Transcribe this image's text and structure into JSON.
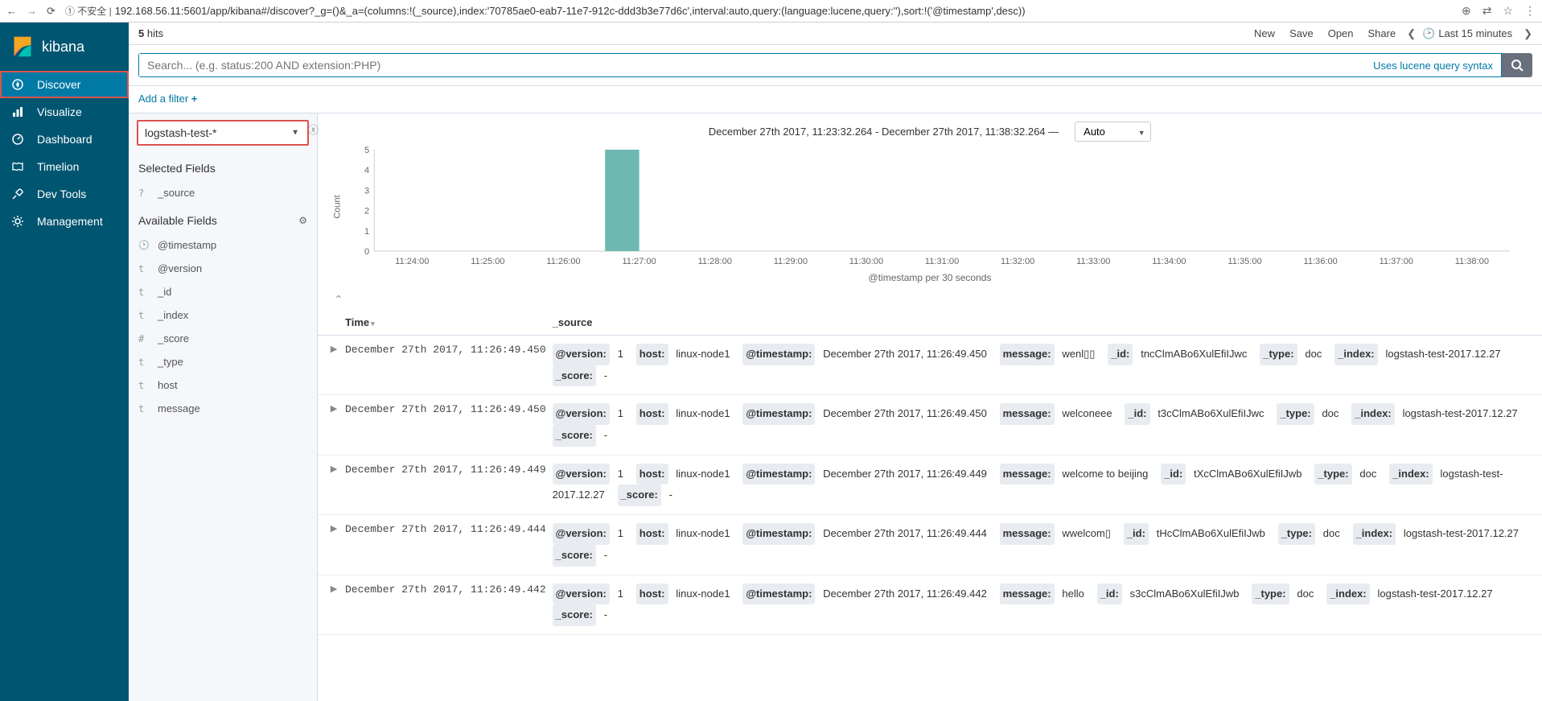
{
  "browser": {
    "url_prefix": "① 不安全 |",
    "url": "192.168.56.11:5601/app/kibana#/discover?_g=()&_a=(columns:!(_source),index:'70785ae0-eab7-11e7-912c-ddd3b3e77d6c',interval:auto,query:(language:lucene,query:''),sort:!('@timestamp',desc))"
  },
  "brand": "kibana",
  "nav": {
    "items": [
      {
        "key": "discover",
        "label": "Discover",
        "active": true,
        "highlighted": true
      },
      {
        "key": "visualize",
        "label": "Visualize"
      },
      {
        "key": "dashboard",
        "label": "Dashboard"
      },
      {
        "key": "timelion",
        "label": "Timelion"
      },
      {
        "key": "devtools",
        "label": "Dev Tools"
      },
      {
        "key": "management",
        "label": "Management"
      }
    ]
  },
  "topbar": {
    "hits_count": "5",
    "hits_label": "hits",
    "links": {
      "new": "New",
      "save": "Save",
      "open": "Open",
      "share": "Share"
    },
    "time_label": "Last 15 minutes"
  },
  "search": {
    "placeholder": "Search... (e.g. status:200 AND extension:PHP)",
    "lucene_hint": "Uses lucene query syntax"
  },
  "filter": {
    "add_label": "Add a filter"
  },
  "index_pattern": "logstash-test-*",
  "fields": {
    "selected_heading": "Selected Fields",
    "available_heading": "Available Fields",
    "selected": [
      {
        "type": "?",
        "name": "_source"
      }
    ],
    "available": [
      {
        "type": "clock",
        "name": "@timestamp"
      },
      {
        "type": "t",
        "name": "@version"
      },
      {
        "type": "t",
        "name": "_id"
      },
      {
        "type": "t",
        "name": "_index"
      },
      {
        "type": "#",
        "name": "_score"
      },
      {
        "type": "t",
        "name": "_type"
      },
      {
        "type": "t",
        "name": "host"
      },
      {
        "type": "t",
        "name": "message"
      }
    ]
  },
  "daterange": {
    "text": "December 27th 2017, 11:23:32.264 - December 27th 2017, 11:38:32.264 —",
    "interval": "Auto"
  },
  "chart": {
    "type": "bar",
    "ylabel": "Count",
    "xlabel": "@timestamp per 30 seconds",
    "ylim": [
      0,
      5
    ],
    "yticks": [
      0,
      1,
      2,
      3,
      4,
      5
    ],
    "xticks": [
      "11:24:00",
      "11:25:00",
      "11:26:00",
      "11:27:00",
      "11:28:00",
      "11:29:00",
      "11:30:00",
      "11:31:00",
      "11:32:00",
      "11:33:00",
      "11:34:00",
      "11:35:00",
      "11:36:00",
      "11:37:00",
      "11:38:00"
    ],
    "bar": {
      "x_index": 3,
      "value": 5
    },
    "bar_color": "#6db9b2",
    "axis_color": "#cccccc",
    "tick_font_size": 11,
    "bg_color": "#ffffff"
  },
  "table": {
    "columns": {
      "time": "Time",
      "source": "_source"
    },
    "rows": [
      {
        "time": "December 27th 2017, 11:26:49.450",
        "fields": [
          [
            "@version:",
            "1"
          ],
          [
            "host:",
            "linux-node1"
          ],
          [
            "@timestamp:",
            "December 27th 2017, 11:26:49.450"
          ],
          [
            "message:",
            "wenl▯▯"
          ],
          [
            "_id:",
            "tncClmABo6XulEfiIJwc"
          ],
          [
            "_type:",
            "doc"
          ],
          [
            "_index:",
            "logstash-test-2017.12.27"
          ],
          [
            "_score:",
            "-"
          ]
        ]
      },
      {
        "time": "December 27th 2017, 11:26:49.450",
        "fields": [
          [
            "@version:",
            "1"
          ],
          [
            "host:",
            "linux-node1"
          ],
          [
            "@timestamp:",
            "December 27th 2017, 11:26:49.450"
          ],
          [
            "message:",
            "welconeee"
          ],
          [
            "_id:",
            "t3cClmABo6XulEfiIJwc"
          ],
          [
            "_type:",
            "doc"
          ],
          [
            "_index:",
            "logstash-test-2017.12.27"
          ],
          [
            "_score:",
            "-"
          ]
        ]
      },
      {
        "time": "December 27th 2017, 11:26:49.449",
        "fields": [
          [
            "@version:",
            "1"
          ],
          [
            "host:",
            "linux-node1"
          ],
          [
            "@timestamp:",
            "December 27th 2017, 11:26:49.449"
          ],
          [
            "message:",
            "welcome to beijing"
          ],
          [
            "_id:",
            "tXcClmABo6XulEfiIJwb"
          ],
          [
            "_type:",
            "doc"
          ],
          [
            "_index:",
            "logstash-test-2017.12.27"
          ],
          [
            "_score:",
            "-"
          ]
        ]
      },
      {
        "time": "December 27th 2017, 11:26:49.444",
        "fields": [
          [
            "@version:",
            "1"
          ],
          [
            "host:",
            "linux-node1"
          ],
          [
            "@timestamp:",
            "December 27th 2017, 11:26:49.444"
          ],
          [
            "message:",
            "wwelcom▯"
          ],
          [
            "_id:",
            "tHcClmABo6XulEfiIJwb"
          ],
          [
            "_type:",
            "doc"
          ],
          [
            "_index:",
            "logstash-test-2017.12.27"
          ],
          [
            "_score:",
            "-"
          ]
        ]
      },
      {
        "time": "December 27th 2017, 11:26:49.442",
        "fields": [
          [
            "@version:",
            "1"
          ],
          [
            "host:",
            "linux-node1"
          ],
          [
            "@timestamp:",
            "December 27th 2017, 11:26:49.442"
          ],
          [
            "message:",
            "hello"
          ],
          [
            "_id:",
            "s3cClmABo6XulEfiIJwb"
          ],
          [
            "_type:",
            "doc"
          ],
          [
            "_index:",
            "logstash-test-2017.12.27"
          ],
          [
            "_score:",
            "-"
          ]
        ]
      }
    ]
  }
}
